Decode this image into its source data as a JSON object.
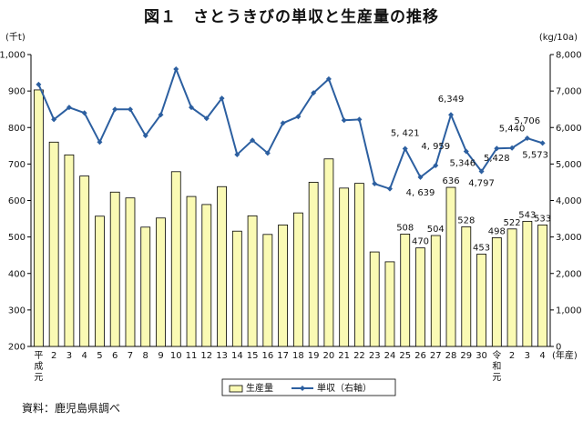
{
  "page": {
    "title": "図１　さとうきびの単収と生産量の推移",
    "source": "資料：鹿児島県調べ"
  },
  "colors": {
    "bar_fill": "#fafab4",
    "bar_stroke": "#000000",
    "line": "#2c5fa0",
    "axis": "#000000"
  },
  "chart_data": {
    "type": "bar",
    "title": "図１　さとうきびの単収と生産量の推移",
    "y_left_unit": "(千t)",
    "y_right_unit": "(kg/10a)",
    "x_unit": "(年産)",
    "ylim_left": [
      200,
      1000
    ],
    "ylim_right": [
      0,
      8000
    ],
    "y_left_ticks": [
      "200",
      "300",
      "400",
      "500",
      "600",
      "700",
      "800",
      "900",
      "1,000"
    ],
    "y_right_ticks": [
      "0",
      "1,000",
      "2,000",
      "3,000",
      "4,000",
      "5,000",
      "6,000",
      "7,000",
      "8,000"
    ],
    "categories": [
      "平成元",
      "2",
      "3",
      "4",
      "5",
      "6",
      "7",
      "8",
      "9",
      "10",
      "11",
      "12",
      "13",
      "14",
      "15",
      "16",
      "17",
      "18",
      "19",
      "20",
      "21",
      "22",
      "23",
      "24",
      "25",
      "26",
      "27",
      "28",
      "29",
      "30",
      "令和元",
      "2",
      "3",
      "4"
    ],
    "series": [
      {
        "name": "生産量",
        "kind": "bar",
        "axis": "left",
        "values": [
          903,
          760,
          725,
          667,
          557,
          623,
          607,
          527,
          552,
          679,
          611,
          589,
          638,
          516,
          558,
          507,
          533,
          566,
          650,
          714,
          634,
          647,
          459,
          432,
          508,
          470,
          504,
          636,
          528,
          453,
          498,
          522,
          543,
          533
        ]
      },
      {
        "name": "単収（右軸）",
        "kind": "line",
        "axis": "right",
        "values": [
          7180,
          6220,
          6550,
          6400,
          5600,
          6500,
          6500,
          5780,
          6350,
          7600,
          6550,
          6250,
          6800,
          5260,
          5650,
          5300,
          6120,
          6300,
          6950,
          7330,
          6200,
          6220,
          4460,
          4320,
          5421,
          4639,
          4959,
          6349,
          5346,
          4797,
          5428,
          5440,
          5706,
          5573
        ]
      }
    ],
    "bar_labels": [
      {
        "index": 24,
        "text": "508"
      },
      {
        "index": 25,
        "text": "470"
      },
      {
        "index": 26,
        "text": "504"
      },
      {
        "index": 27,
        "text": "636"
      },
      {
        "index": 28,
        "text": "528"
      },
      {
        "index": 29,
        "text": "453"
      },
      {
        "index": 30,
        "text": "498"
      },
      {
        "index": 31,
        "text": "522"
      },
      {
        "index": 32,
        "text": "543"
      },
      {
        "index": 33,
        "text": "533"
      }
    ],
    "line_labels": [
      {
        "index": 24,
        "text": "5, 421"
      },
      {
        "index": 26,
        "text": "4, 959"
      },
      {
        "index": 25,
        "text": "4, 639"
      },
      {
        "index": 27,
        "text": "6,349"
      },
      {
        "index": 28,
        "text": "5,346"
      },
      {
        "index": 29,
        "text": "4,797"
      },
      {
        "index": 30,
        "text": "5,428"
      },
      {
        "index": 31,
        "text": "5,440"
      },
      {
        "index": 32,
        "text": "5,706"
      },
      {
        "index": 33,
        "text": "5,573"
      }
    ],
    "legend": [
      {
        "name": "生産量",
        "kind": "bar"
      },
      {
        "name": "単収（右軸）",
        "kind": "line"
      }
    ],
    "legend_position": "bottom-center",
    "grid": false
  }
}
